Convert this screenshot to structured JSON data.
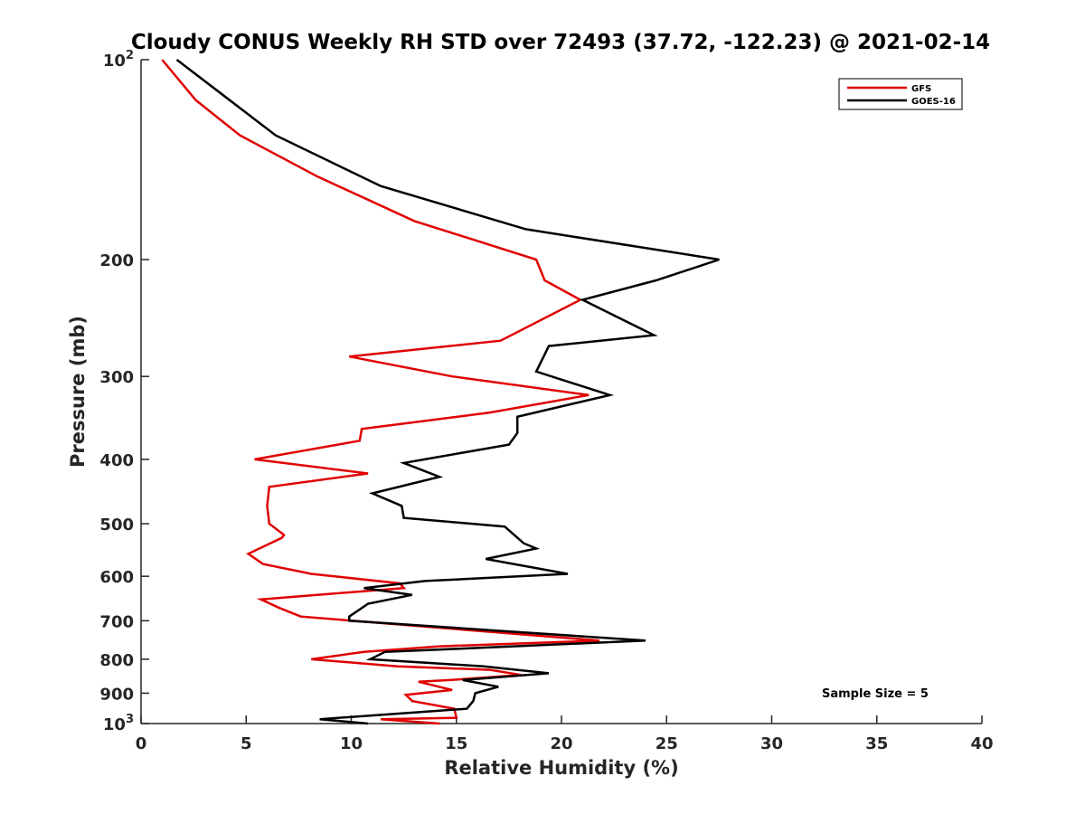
{
  "chart_data": {
    "type": "line",
    "title": "Cloudy CONUS Weekly RH STD over 72493 (37.72, -122.23) @ 2021-02-14",
    "xlabel": "Relative Humidity (%)",
    "ylabel": "Pressure (mb)",
    "xlim": [
      0,
      40
    ],
    "ylim": [
      100,
      1000
    ],
    "y_scale": "log",
    "y_reversed": true,
    "grid": false,
    "x_ticks": [
      0,
      5,
      10,
      15,
      20,
      25,
      30,
      35,
      40
    ],
    "x_tick_labels": [
      "0",
      "5",
      "10",
      "15",
      "20",
      "25",
      "30",
      "35",
      "40"
    ],
    "y_ticks": [
      100,
      200,
      300,
      400,
      500,
      600,
      700,
      800,
      900,
      1000
    ],
    "y_tick_labels": [
      "10^2",
      "200",
      "300",
      "400",
      "500",
      "600",
      "700",
      "800",
      "900",
      "10^3"
    ],
    "legend_position": "top-right",
    "annotation": "Sample Size = 5",
    "series": [
      {
        "name": "GFS",
        "color": "#e00000",
        "points": [
          [
            1.0,
            100
          ],
          [
            2.6,
            115
          ],
          [
            4.7,
            130
          ],
          [
            8.4,
            150
          ],
          [
            13.0,
            175
          ],
          [
            18.8,
            200
          ],
          [
            19.2,
            215
          ],
          [
            20.9,
            230
          ],
          [
            17.1,
            265
          ],
          [
            9.9,
            280
          ],
          [
            14.8,
            300
          ],
          [
            21.3,
            320
          ],
          [
            16.6,
            340
          ],
          [
            10.5,
            360
          ],
          [
            10.4,
            375
          ],
          [
            5.4,
            400
          ],
          [
            10.8,
            420
          ],
          [
            6.1,
            440
          ],
          [
            6.0,
            470
          ],
          [
            6.1,
            500
          ],
          [
            6.8,
            520
          ],
          [
            6.7,
            525
          ],
          [
            5.1,
            555
          ],
          [
            5.8,
            575
          ],
          [
            8.1,
            595
          ],
          [
            12.3,
            615
          ],
          [
            12.5,
            625
          ],
          [
            5.7,
            650
          ],
          [
            6.6,
            670
          ],
          [
            7.6,
            690
          ],
          [
            21.8,
            750
          ],
          [
            14.2,
            765
          ],
          [
            10.6,
            780
          ],
          [
            8.1,
            800
          ],
          [
            12.2,
            820
          ],
          [
            16.6,
            830
          ],
          [
            18.1,
            845
          ],
          [
            14.7,
            860
          ],
          [
            13.2,
            865
          ],
          [
            14.8,
            890
          ],
          [
            12.6,
            905
          ],
          [
            12.9,
            925
          ],
          [
            14.9,
            950
          ],
          [
            15.0,
            980
          ],
          [
            11.4,
            985
          ],
          [
            14.2,
            1000
          ]
        ]
      },
      {
        "name": "GOES-16",
        "color": "#000000",
        "points": [
          [
            1.7,
            100
          ],
          [
            6.4,
            130
          ],
          [
            11.4,
            155
          ],
          [
            18.3,
            180
          ],
          [
            27.5,
            200
          ],
          [
            24.5,
            215
          ],
          [
            21.0,
            230
          ],
          [
            24.4,
            260
          ],
          [
            19.4,
            270
          ],
          [
            18.8,
            295
          ],
          [
            22.3,
            320
          ],
          [
            17.9,
            345
          ],
          [
            17.9,
            365
          ],
          [
            17.5,
            380
          ],
          [
            12.5,
            405
          ],
          [
            14.2,
            425
          ],
          [
            11.0,
            450
          ],
          [
            12.4,
            470
          ],
          [
            12.5,
            490
          ],
          [
            17.3,
            505
          ],
          [
            18.2,
            535
          ],
          [
            18.8,
            545
          ],
          [
            16.4,
            565
          ],
          [
            20.3,
            595
          ],
          [
            13.5,
            610
          ],
          [
            10.6,
            625
          ],
          [
            12.9,
            640
          ],
          [
            10.8,
            660
          ],
          [
            9.9,
            690
          ],
          [
            9.9,
            700
          ],
          [
            24.0,
            750
          ],
          [
            11.6,
            780
          ],
          [
            10.9,
            800
          ],
          [
            16.3,
            820
          ],
          [
            19.4,
            840
          ],
          [
            15.3,
            860
          ],
          [
            17.0,
            880
          ],
          [
            15.9,
            900
          ],
          [
            15.8,
            925
          ],
          [
            15.5,
            950
          ],
          [
            8.5,
            985
          ],
          [
            10.8,
            1000
          ]
        ]
      }
    ]
  }
}
